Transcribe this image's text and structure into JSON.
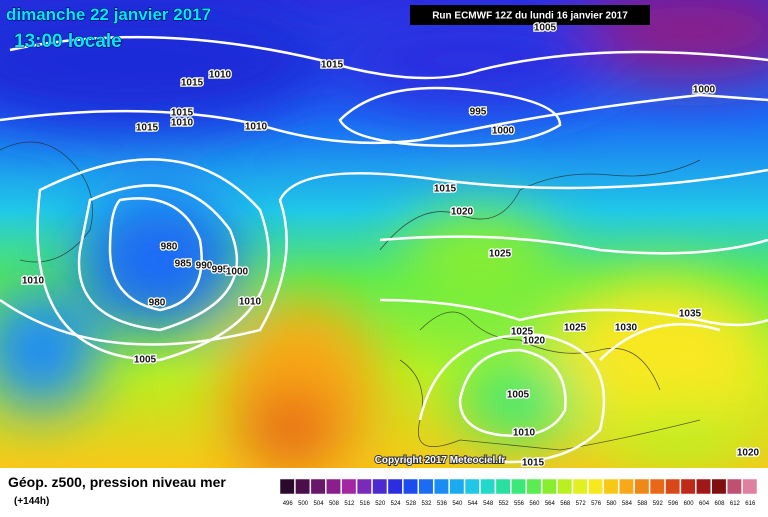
{
  "header": {
    "date": "dimanche 22 janvier 2017",
    "time": "13:00 locale",
    "run": "Run ECMWF 12Z du lundi 16 janvier 2017"
  },
  "copyright": "Copyright 2017 Meteociel.fr",
  "footer": {
    "title": "Géop. z500, pression niveau mer",
    "lead": "(+144h)"
  },
  "isobar_labels": [
    1005,
    1015,
    1010,
    1015,
    1000,
    995,
    1015,
    1010,
    1015,
    1010,
    1000,
    1015,
    1020,
    980,
    985,
    990,
    995,
    1000,
    1010,
    1025,
    1010,
    980,
    1035,
    1030,
    1025,
    1025,
    1020,
    1005,
    1005,
    1010,
    1015,
    1020
  ],
  "scale": {
    "labels": [
      496,
      500,
      504,
      508,
      512,
      516,
      520,
      524,
      528,
      532,
      536,
      540,
      544,
      548,
      552,
      556,
      560,
      564,
      568,
      572,
      576,
      580,
      584,
      588,
      592,
      596,
      600,
      604,
      608,
      612,
      616
    ],
    "colors": [
      "#2a0a2a",
      "#4a0f4a",
      "#6a166a",
      "#8a1e8a",
      "#a326a3",
      "#7a2ab8",
      "#4b2ad0",
      "#2a2ee0",
      "#1a4cf0",
      "#1a6cf5",
      "#1a8cf5",
      "#1aaaf0",
      "#20c8e8",
      "#22d8c8",
      "#2ae0a0",
      "#3ce878",
      "#5aec50",
      "#88ee30",
      "#b8f020",
      "#e0f020",
      "#f8e820",
      "#f8c818",
      "#f8a818",
      "#f08818",
      "#e86818",
      "#d84818",
      "#c02818",
      "#a01818",
      "#801010",
      "#c05070",
      "#e080a0"
    ]
  }
}
